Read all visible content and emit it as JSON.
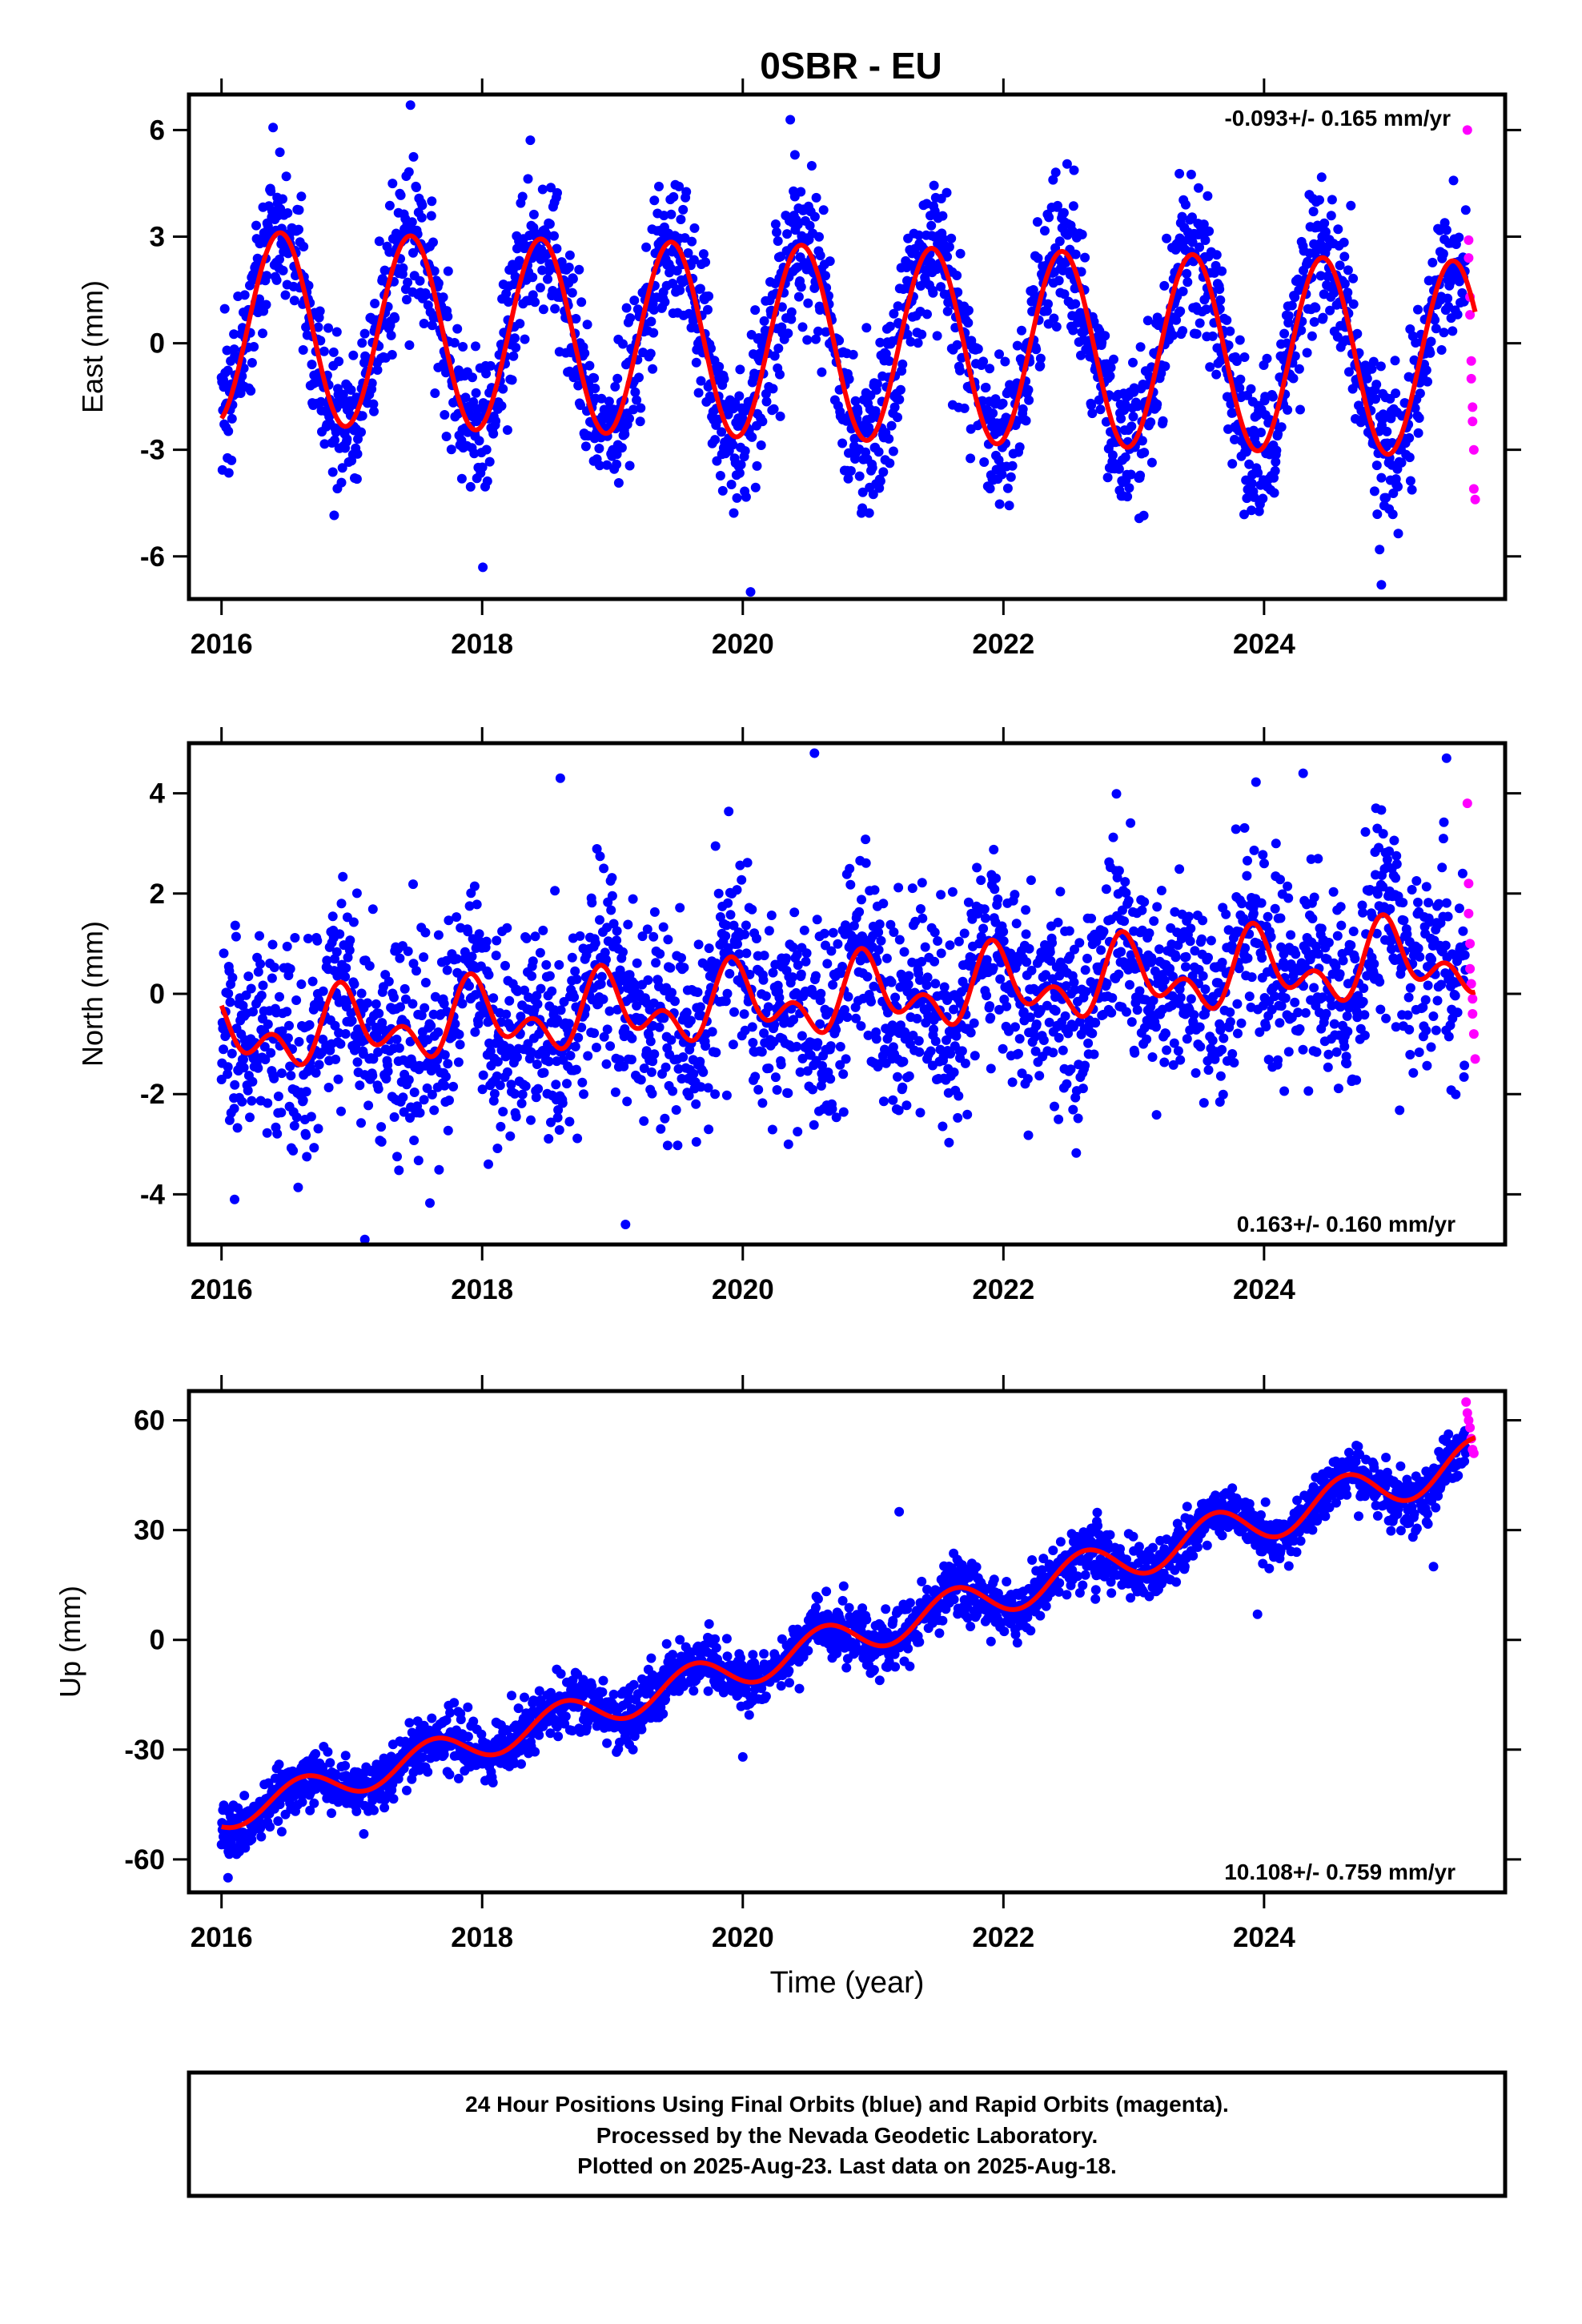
{
  "chart_data": {
    "type": "scatter",
    "title": "0SBR - EU",
    "xlabel": "Time (year)",
    "x_ticks": [
      2016,
      2018,
      2020,
      2022,
      2024
    ],
    "xlim": [
      2015.75,
      2025.85
    ],
    "colors": {
      "final_orbits": "#0000ff",
      "rapid_orbits": "#ff00ff",
      "model_fit": "#ff0000"
    },
    "grid": false,
    "panels": [
      {
        "component": "east",
        "ylabel": "East (mm)",
        "ylim": [
          -7.2,
          7.0
        ],
        "y_ticks": [
          -6,
          -3,
          0,
          3,
          6
        ],
        "rate_label": "-0.093+/- 0.165 mm/yr",
        "rate_position": "top-right",
        "trend": {
          "slope": -0.093,
          "offset": 0.45
        },
        "seasonal": {
          "amplitude_start": 2.7,
          "amplitude_end": 2.75,
          "phase_peak_fraction": 0.45
        },
        "scatter_sd": 1.05,
        "outliers": [
          [
            2017.45,
            6.7
          ],
          [
            2020.06,
            -7.0
          ],
          [
            2024.9,
            -6.8
          ],
          [
            2020.4,
            5.3
          ]
        ],
        "rapid_points": [
          [
            2025.56,
            6.0
          ],
          [
            2025.57,
            2.9
          ],
          [
            2025.57,
            2.4
          ],
          [
            2025.58,
            1.3
          ],
          [
            2025.58,
            0.8
          ],
          [
            2025.59,
            -0.5
          ],
          [
            2025.59,
            -1.0
          ],
          [
            2025.6,
            -1.8
          ],
          [
            2025.6,
            -2.2
          ],
          [
            2025.61,
            -3.0
          ],
          [
            2025.61,
            -4.1
          ],
          [
            2025.62,
            -4.4
          ]
        ]
      },
      {
        "component": "north",
        "ylabel": "North (mm)",
        "ylim": [
          -5.0,
          5.0
        ],
        "y_ticks": [
          -4,
          -2,
          0,
          2,
          4
        ],
        "rate_label": "0.163+/- 0.160 mm/yr",
        "rate_position": "bottom-right",
        "trend": {
          "slope": 0.163,
          "offset": -0.85
        },
        "seasonal": {
          "amplitude_start": 0.5,
          "amplitude_end": 0.55,
          "phase_peak_fraction": 0.95
        },
        "semiannual": {
          "amplitude": 0.45,
          "phase_peak_fraction": 0.4
        },
        "scatter_sd": 1.0,
        "outliers": [
          [
            2016.1,
            -4.1
          ],
          [
            2017.1,
            -4.9
          ],
          [
            2018.6,
            4.3
          ],
          [
            2019.1,
            -4.6
          ],
          [
            2020.55,
            4.8
          ],
          [
            2024.3,
            4.4
          ],
          [
            2025.4,
            4.7
          ]
        ],
        "rapid_points": [
          [
            2025.56,
            3.8
          ],
          [
            2025.57,
            2.2
          ],
          [
            2025.57,
            1.6
          ],
          [
            2025.58,
            1.0
          ],
          [
            2025.58,
            0.5
          ],
          [
            2025.59,
            0.2
          ],
          [
            2025.6,
            -0.1
          ],
          [
            2025.6,
            -0.4
          ],
          [
            2025.61,
            -0.8
          ],
          [
            2025.62,
            -1.3
          ]
        ]
      },
      {
        "component": "up",
        "ylabel": "Up (mm)",
        "ylim": [
          -69.0,
          68.0
        ],
        "y_ticks": [
          -60,
          -30,
          0,
          30,
          60
        ],
        "rate_label": "10.108+/- 0.759 mm/yr",
        "rate_position": "bottom-right",
        "trend": {
          "slope": 10.108,
          "offset": -48.0
        },
        "seasonal": {
          "amplitude_start": 4.2,
          "amplitude_end": 6.0,
          "phase_peak_fraction": 0.62
        },
        "scatter_sd": 3.8,
        "outliers": [
          [
            2016.05,
            -65.0
          ],
          [
            2020.0,
            -32.0
          ],
          [
            2021.2,
            35.0
          ],
          [
            2023.95,
            7.0
          ],
          [
            2025.3,
            20.0
          ]
        ],
        "rapid_points": [
          [
            2025.55,
            65.0
          ],
          [
            2025.56,
            62.0
          ],
          [
            2025.57,
            60.0
          ],
          [
            2025.58,
            58.0
          ],
          [
            2025.59,
            55.0
          ],
          [
            2025.6,
            52.0
          ],
          [
            2025.61,
            51.0
          ]
        ]
      }
    ]
  },
  "caption": {
    "line1": "24 Hour Positions Using Final Orbits (blue) and Rapid Orbits (magenta).",
    "line2": "Processed by the Nevada Geodetic Laboratory.",
    "line3": "Plotted on 2025-Aug-23. Last data on 2025-Aug-18."
  }
}
